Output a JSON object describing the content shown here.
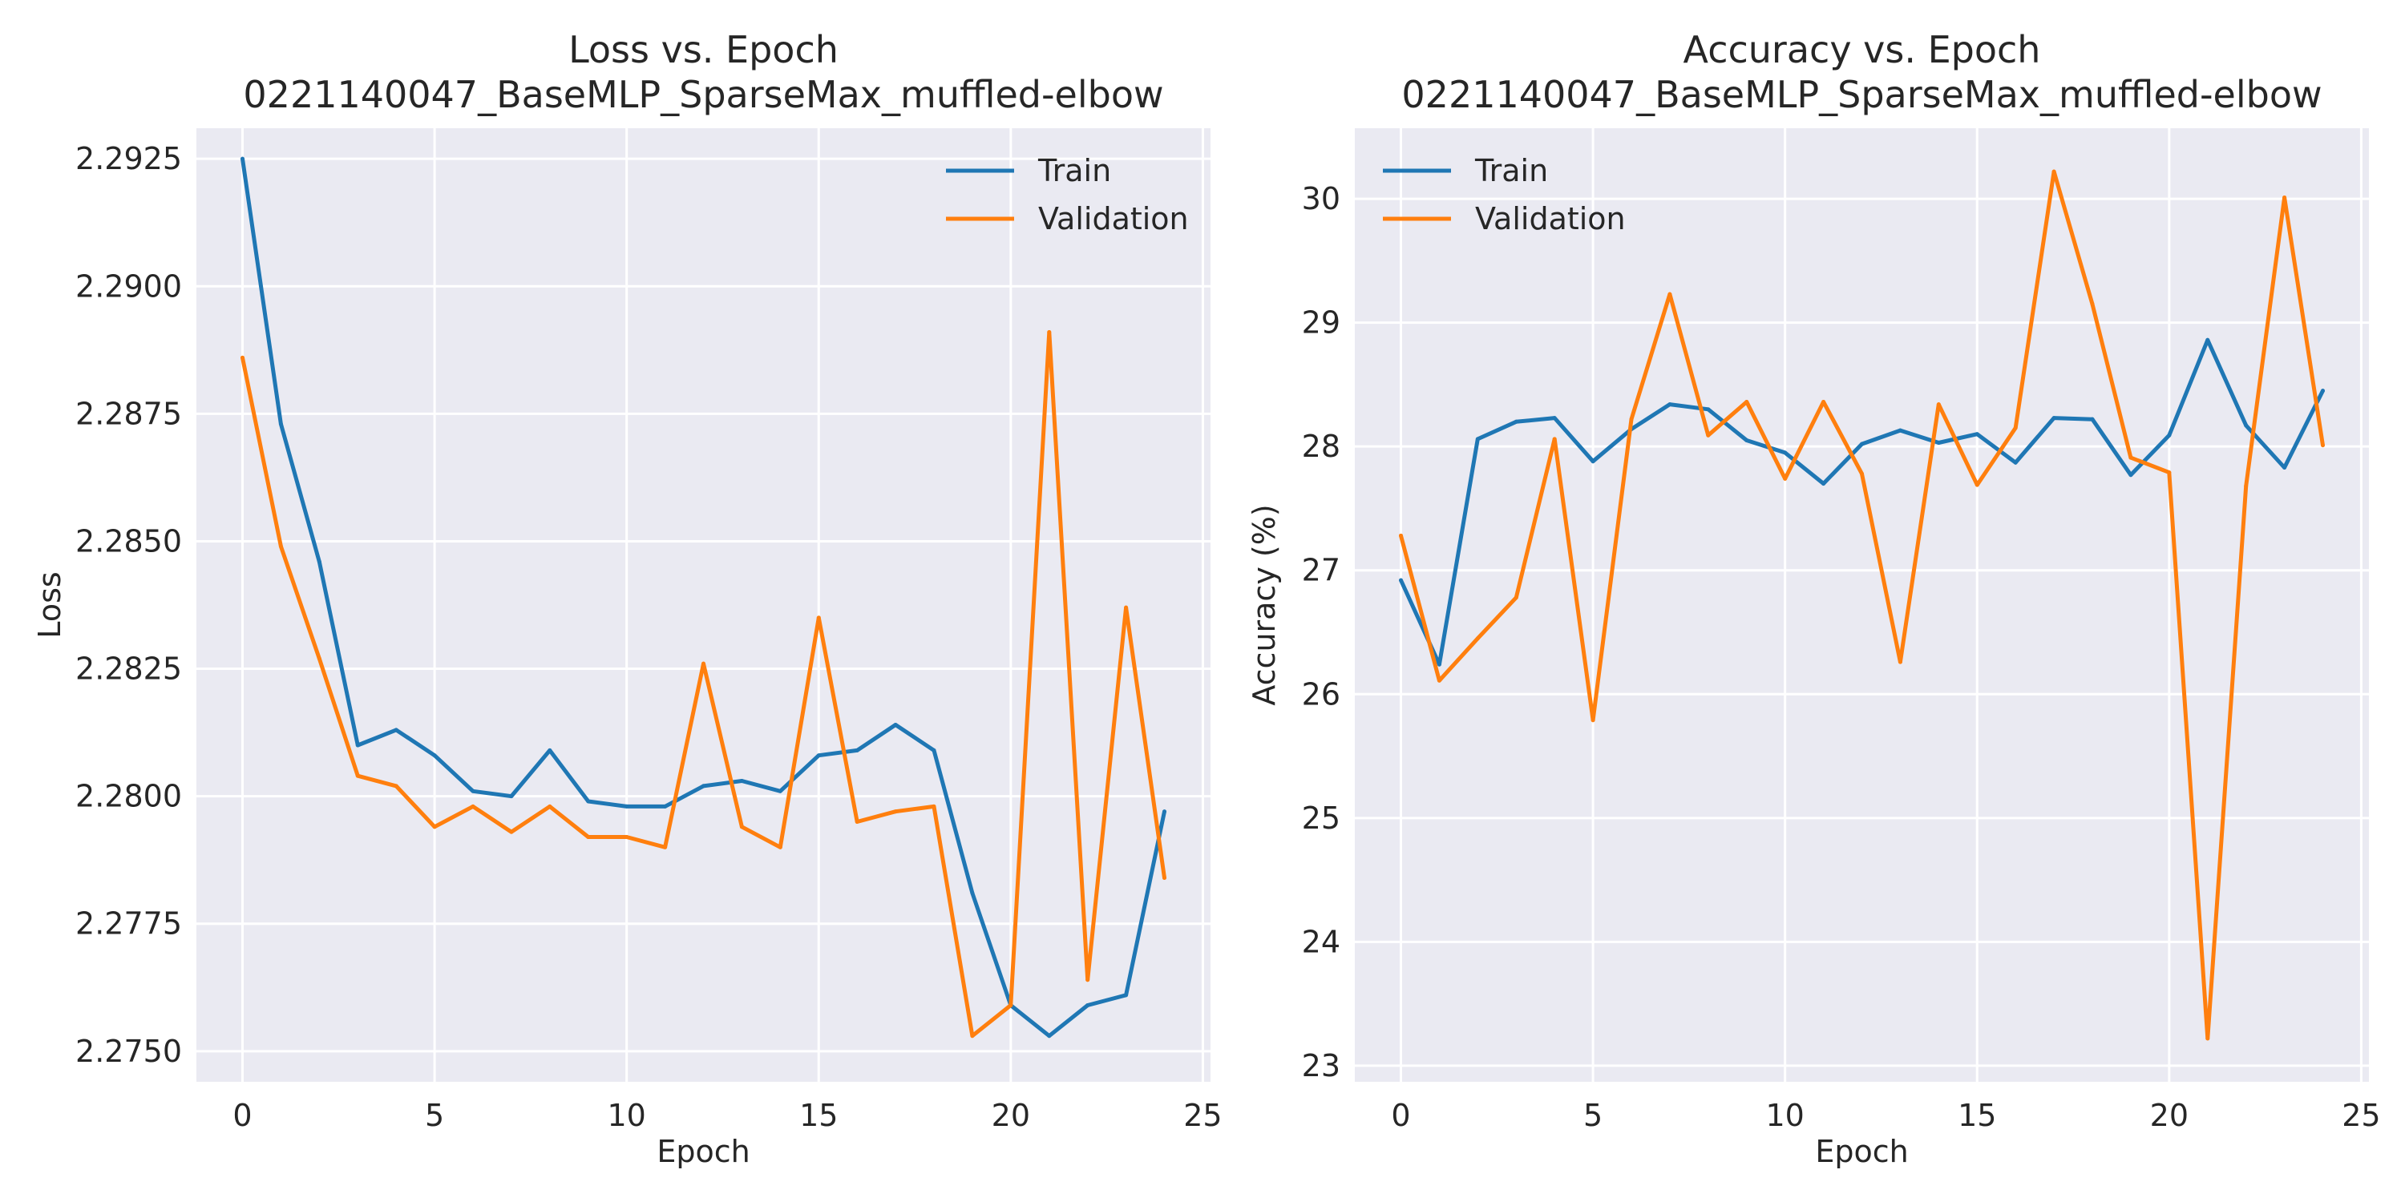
{
  "chart_data": [
    {
      "type": "line",
      "title": "Loss vs. Epoch",
      "subtitle": "0221140047_BaseMLP_SparseMax_muffled-elbow",
      "xlabel": "Epoch",
      "ylabel": "Loss",
      "xlim": [
        -1.2,
        25.2
      ],
      "ylim": [
        2.2744,
        2.2931
      ],
      "xticks": [
        0,
        5,
        10,
        15,
        20,
        25
      ],
      "xtick_labels": [
        "0",
        "5",
        "10",
        "15",
        "20",
        "25"
      ],
      "yticks": [
        2.275,
        2.2775,
        2.28,
        2.2825,
        2.285,
        2.2875,
        2.29,
        2.2925
      ],
      "ytick_labels": [
        "2.2750",
        "2.2775",
        "2.2800",
        "2.2825",
        "2.2850",
        "2.2875",
        "2.2900",
        "2.2925"
      ],
      "grid": true,
      "legend_position": "top-right",
      "x": [
        0,
        1,
        2,
        3,
        4,
        5,
        6,
        7,
        8,
        9,
        10,
        11,
        12,
        13,
        14,
        15,
        16,
        17,
        18,
        19,
        20,
        21,
        22,
        23,
        24
      ],
      "series": [
        {
          "name": "Train",
          "color": "#1f77b4",
          "values": [
            2.2925,
            2.2873,
            2.2846,
            2.281,
            2.2813,
            2.2808,
            2.2801,
            2.28,
            2.2809,
            2.2799,
            2.2798,
            2.2798,
            2.2802,
            2.2803,
            2.2801,
            2.2808,
            2.2809,
            2.2814,
            2.2809,
            2.2781,
            2.2759,
            2.2753,
            2.2759,
            2.2761,
            2.2797
          ]
        },
        {
          "name": "Validation",
          "color": "#ff7f0e",
          "values": [
            2.2886,
            2.2849,
            2.2827,
            2.2804,
            2.2802,
            2.2794,
            2.2798,
            2.2793,
            2.2798,
            2.2792,
            2.2792,
            2.279,
            2.2826,
            2.2794,
            2.279,
            2.2835,
            2.2795,
            2.2797,
            2.2798,
            2.2753,
            2.2759,
            2.2891,
            2.2764,
            2.2837,
            2.2784
          ]
        }
      ]
    },
    {
      "type": "line",
      "title": "Accuracy vs. Epoch",
      "subtitle": "0221140047_BaseMLP_SparseMax_muffled-elbow",
      "xlabel": "Epoch",
      "ylabel": "Accuracy (%)",
      "xlim": [
        -1.2,
        25.2
      ],
      "ylim": [
        22.87,
        30.57
      ],
      "xticks": [
        0,
        5,
        10,
        15,
        20,
        25
      ],
      "xtick_labels": [
        "0",
        "5",
        "10",
        "15",
        "20",
        "25"
      ],
      "yticks": [
        23,
        24,
        25,
        26,
        27,
        28,
        29,
        30
      ],
      "ytick_labels": [
        "23",
        "24",
        "25",
        "26",
        "27",
        "28",
        "29",
        "30"
      ],
      "grid": true,
      "legend_position": "top-left",
      "x": [
        0,
        1,
        2,
        3,
        4,
        5,
        6,
        7,
        8,
        9,
        10,
        11,
        12,
        13,
        14,
        15,
        16,
        17,
        18,
        19,
        20,
        21,
        22,
        23,
        24
      ],
      "series": [
        {
          "name": "Train",
          "color": "#1f77b4",
          "values": [
            26.92,
            26.24,
            28.06,
            28.2,
            28.23,
            27.88,
            28.14,
            28.34,
            28.3,
            28.05,
            27.95,
            27.7,
            28.02,
            28.13,
            28.03,
            28.1,
            27.87,
            28.23,
            28.22,
            27.77,
            28.09,
            28.86,
            28.17,
            27.83,
            28.45
          ]
        },
        {
          "name": "Validation",
          "color": "#ff7f0e",
          "values": [
            27.28,
            26.11,
            26.45,
            26.78,
            28.06,
            25.79,
            28.22,
            29.23,
            28.09,
            28.36,
            27.74,
            28.36,
            27.78,
            26.26,
            28.34,
            27.69,
            28.15,
            30.22,
            29.15,
            27.91,
            27.79,
            23.22,
            27.68,
            30.01,
            28.01
          ]
        }
      ]
    }
  ]
}
